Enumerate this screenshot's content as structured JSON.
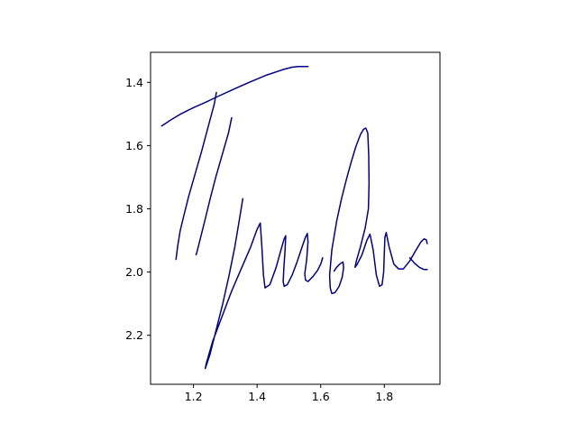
{
  "chart_data": {
    "type": "line",
    "title": "",
    "xlabel": "",
    "ylabel": "",
    "xlim": [
      1.065,
      1.975
    ],
    "ylim": [
      2.355,
      1.305
    ],
    "y_inverted": true,
    "aspect": "equal",
    "grid": false,
    "legend": "none",
    "line_color": "#00008b",
    "x_ticks": [
      {
        "value": 1.2,
        "label": "1.2"
      },
      {
        "value": 1.4,
        "label": "1.4"
      },
      {
        "value": 1.6,
        "label": "1.6"
      },
      {
        "value": 1.8,
        "label": "1.8"
      }
    ],
    "y_ticks": [
      {
        "value": 1.4,
        "label": "1.4"
      },
      {
        "value": 1.6,
        "label": "1.6"
      },
      {
        "value": 1.8,
        "label": "1.8"
      },
      {
        "value": 2.0,
        "label": "2.0"
      },
      {
        "value": 2.2,
        "label": "2.2"
      }
    ],
    "series": [
      {
        "x": [
          1.1,
          1.13,
          1.16,
          1.2,
          1.24,
          1.28,
          1.33,
          1.38,
          1.43,
          1.48,
          1.51,
          1.53,
          1.56
        ],
        "y": [
          1.538,
          1.518,
          1.5,
          1.48,
          1.462,
          1.443,
          1.42,
          1.398,
          1.377,
          1.36,
          1.352,
          1.35,
          1.35
        ]
      },
      {
        "x": [
          1.272,
          1.265,
          1.245,
          1.225,
          1.205,
          1.185,
          1.17,
          1.158,
          1.15,
          1.145
        ],
        "y": [
          1.432,
          1.47,
          1.545,
          1.62,
          1.69,
          1.76,
          1.82,
          1.87,
          1.92,
          1.96
        ]
      },
      {
        "x": [
          1.32,
          1.31,
          1.29,
          1.27,
          1.252,
          1.235,
          1.22,
          1.21,
          1.208
        ],
        "y": [
          1.512,
          1.56,
          1.63,
          1.7,
          1.77,
          1.84,
          1.9,
          1.94,
          1.945
        ]
      },
      {
        "x": [
          1.355,
          1.345,
          1.33,
          1.312,
          1.292,
          1.272,
          1.252,
          1.237,
          1.24,
          1.26,
          1.29,
          1.32,
          1.35,
          1.38,
          1.4,
          1.41,
          1.415,
          1.42,
          1.425,
          1.44,
          1.46,
          1.475,
          1.485,
          1.49,
          1.488,
          1.484,
          1.482,
          1.485,
          1.495,
          1.51,
          1.525,
          1.54,
          1.552,
          1.558,
          1.56,
          1.556,
          1.55,
          1.552,
          1.56,
          1.575,
          1.59,
          1.6,
          1.605,
          1.606,
          1.603
        ],
        "y": [
          1.768,
          1.83,
          1.92,
          2.01,
          2.1,
          2.18,
          2.26,
          2.305,
          2.29,
          2.22,
          2.14,
          2.06,
          1.99,
          1.92,
          1.865,
          1.845,
          1.92,
          2.01,
          2.05,
          2.04,
          1.985,
          1.93,
          1.895,
          1.885,
          1.93,
          1.99,
          2.03,
          2.045,
          2.04,
          2.01,
          1.97,
          1.925,
          1.89,
          1.878,
          1.905,
          1.96,
          2.005,
          2.025,
          2.03,
          2.015,
          1.995,
          1.975,
          1.96,
          1.955,
          1.965
        ]
      },
      {
        "x": [
          1.642,
          1.65,
          1.66,
          1.67,
          1.672,
          1.668,
          1.658,
          1.645,
          1.635,
          1.63,
          1.628,
          1.635,
          1.65,
          1.665,
          1.68,
          1.695,
          1.71,
          1.725,
          1.735,
          1.742,
          1.748,
          1.751,
          1.752,
          1.75,
          1.74,
          1.725,
          1.712,
          1.708,
          1.715,
          1.73,
          1.745,
          1.755,
          1.765,
          1.775,
          1.785,
          1.793,
          1.798,
          1.8,
          1.802,
          1.806,
          1.815,
          1.83,
          1.845,
          1.86,
          1.88,
          1.9,
          1.915,
          1.925,
          1.932,
          1.935
        ],
        "y": [
          1.997,
          1.985,
          1.975,
          1.968,
          1.985,
          2.015,
          2.045,
          2.065,
          2.068,
          2.05,
          2.01,
          1.93,
          1.84,
          1.77,
          1.71,
          1.655,
          1.605,
          1.565,
          1.548,
          1.545,
          1.56,
          1.63,
          1.72,
          1.8,
          1.86,
          1.92,
          1.965,
          1.985,
          1.975,
          1.945,
          1.9,
          1.88,
          1.93,
          2.01,
          2.045,
          2.04,
          2.0,
          1.94,
          1.89,
          1.875,
          1.92,
          1.975,
          1.99,
          1.99,
          1.965,
          1.93,
          1.905,
          1.895,
          1.898,
          1.91
        ]
      },
      {
        "x": [
          1.88,
          1.895,
          1.91,
          1.925,
          1.935
        ],
        "y": [
          1.955,
          1.972,
          1.985,
          1.992,
          1.992
        ]
      }
    ]
  }
}
